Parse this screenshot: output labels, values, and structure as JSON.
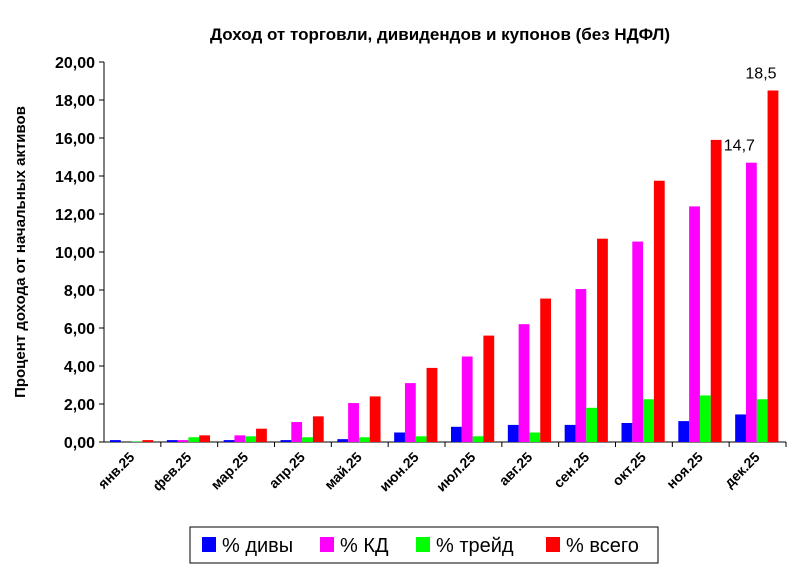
{
  "chart_data": {
    "type": "bar",
    "title": "Доход от торговли, дивидендов и купонов (без НДФЛ)",
    "ylabel": "Процент дохода от начальных активов",
    "xlabel": "",
    "ylim": [
      0,
      20
    ],
    "yticks": [
      "0,00",
      "2,00",
      "4,00",
      "6,00",
      "8,00",
      "10,00",
      "12,00",
      "14,00",
      "16,00",
      "18,00",
      "20,00"
    ],
    "grid": false,
    "legend": "bottom",
    "categories": [
      "янв.25",
      "фев.25",
      "мар.25",
      "апр.25",
      "май.25",
      "июн.25",
      "июл.25",
      "авг.25",
      "сен.25",
      "окт.25",
      "ноя.25",
      "дек.25"
    ],
    "series": [
      {
        "name": "% дивы",
        "color": "#0000ff",
        "values": [
          0.1,
          0.1,
          0.1,
          0.1,
          0.15,
          0.5,
          0.8,
          0.9,
          0.9,
          1.0,
          1.1,
          1.45
        ]
      },
      {
        "name": "% КД",
        "color": "#ff00ff",
        "values": [
          0.0,
          0.1,
          0.35,
          1.05,
          2.05,
          3.1,
          4.5,
          6.2,
          8.05,
          10.55,
          12.4,
          14.7
        ]
      },
      {
        "name": "% трейд",
        "color": "#00ff00",
        "values": [
          0.02,
          0.25,
          0.3,
          0.25,
          0.25,
          0.3,
          0.3,
          0.5,
          1.8,
          2.25,
          2.45,
          2.25
        ]
      },
      {
        "name": "% всего",
        "color": "#ff0000",
        "values": [
          0.1,
          0.35,
          0.7,
          1.35,
          2.4,
          3.9,
          5.6,
          7.55,
          10.7,
          13.75,
          15.9,
          18.5
        ]
      }
    ],
    "annotations": [
      {
        "text": "14,7",
        "series": 1,
        "category": 11
      },
      {
        "text": "18,5",
        "series": 3,
        "category": 11
      }
    ]
  }
}
